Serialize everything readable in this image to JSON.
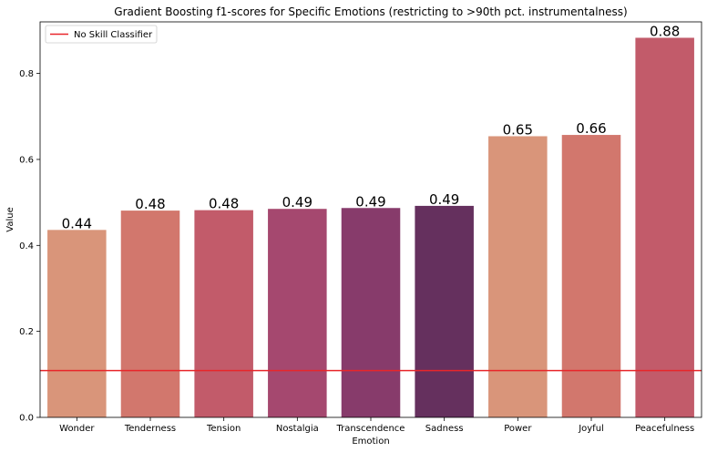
{
  "chart_data": {
    "type": "bar",
    "title": "Gradient Boosting f1-scores for Specific Emotions (restricting to >90th pct. instrumentalness)",
    "xlabel": "Emotion",
    "ylabel": "Value",
    "categories": [
      "Wonder",
      "Tenderness",
      "Tension",
      "Nostalgia",
      "Transcendence",
      "Sadness",
      "Power",
      "Joyful",
      "Peacefulness"
    ],
    "values": [
      0.436,
      0.481,
      0.482,
      0.485,
      0.487,
      0.492,
      0.654,
      0.657,
      0.883
    ],
    "data_labels": [
      "0.44",
      "0.48",
      "0.48",
      "0.49",
      "0.49",
      "0.49",
      "0.65",
      "0.66",
      "0.88"
    ],
    "colors": [
      "#d9957a",
      "#d2776d",
      "#c25b6a",
      "#a5486f",
      "#873b6b",
      "#65305e",
      "#d9957a",
      "#d2776d",
      "#c25b6a"
    ],
    "ylim": [
      0,
      0.92
    ],
    "yticks": [
      0.0,
      0.2,
      0.4,
      0.6,
      0.8
    ],
    "ytick_labels": [
      "0.0",
      "0.2",
      "0.4",
      "0.6",
      "0.8"
    ],
    "grid": false,
    "reference_line": {
      "name": "No Skill Classifier",
      "value": 0.109,
      "color": "#e8262a"
    },
    "legend": {
      "placement": "top-left",
      "entries": [
        "No Skill Classifier"
      ]
    }
  }
}
